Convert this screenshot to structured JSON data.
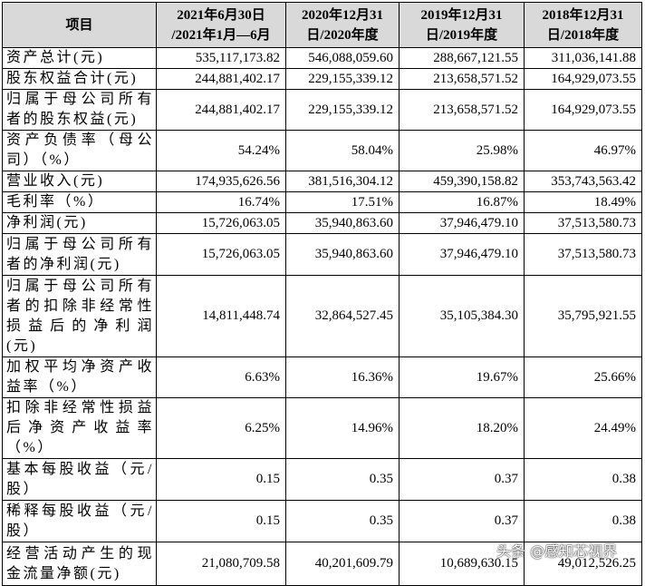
{
  "table": {
    "header": [
      [
        "项目"
      ],
      [
        "2021年6月30日",
        "/2021年1月—6月"
      ],
      [
        "2020年12月31",
        "日/2020年度"
      ],
      [
        "2019年12月31",
        "日/2019年度"
      ],
      [
        "2018年12月31",
        "日/2018年度"
      ]
    ],
    "rows": [
      [
        "资产总计(元)",
        "535,117,173.82",
        "546,088,059.60",
        "288,667,121.55",
        "311,036,141.88"
      ],
      [
        "股东权益合计(元)",
        "244,881,402.17",
        "229,155,339.12",
        "213,658,571.52",
        "164,929,073.55"
      ],
      [
        "归属于母公司所有者的股东权益(元)",
        "244,881,402.17",
        "229,155,339.12",
        "213,658,571.52",
        "164,929,073.55"
      ],
      [
        "资产负债率（母公司）（%）",
        "54.24%",
        "58.04%",
        "25.98%",
        "46.97%"
      ],
      [
        "营业收入(元)",
        "174,935,626.56",
        "381,516,304.12",
        "459,390,158.82",
        "353,743,563.42"
      ],
      [
        "毛利率（%）",
        "16.74%",
        "17.51%",
        "16.87%",
        "18.49%"
      ],
      [
        "净利润(元)",
        "15,726,063.05",
        "35,940,863.60",
        "37,946,479.10",
        "37,513,580.73"
      ],
      [
        "归属于母公司所有者的净利润(元)",
        "15,726,063.05",
        "35,940,863.60",
        "37,946,479.10",
        "37,513,580.73"
      ],
      [
        "归属于母公司所有者的扣除非经常性损益后的净利润(元)",
        "14,811,448.74",
        "32,864,527.45",
        "35,105,384.30",
        "35,795,921.55"
      ],
      [
        "加权平均净资产收益率（%）",
        "6.63%",
        "16.36%",
        "19.67%",
        "25.66%"
      ],
      [
        "扣除非经常性损益后净资产收益率（%）",
        "6.25%",
        "14.96%",
        "18.20%",
        "24.49%"
      ],
      [
        "基本每股收益（元/股）",
        "0.15",
        "0.35",
        "0.37",
        "0.38"
      ],
      [
        "稀释每股收益（元/股）",
        "0.15",
        "0.35",
        "0.37",
        "0.38"
      ],
      [
        "经营活动产生的现金流量净额(元)",
        "21,080,709.58",
        "40,201,609.79",
        "10,689,630.15",
        "49,012,526.25"
      ]
    ]
  },
  "watermark": "头条 @感知芯视界"
}
